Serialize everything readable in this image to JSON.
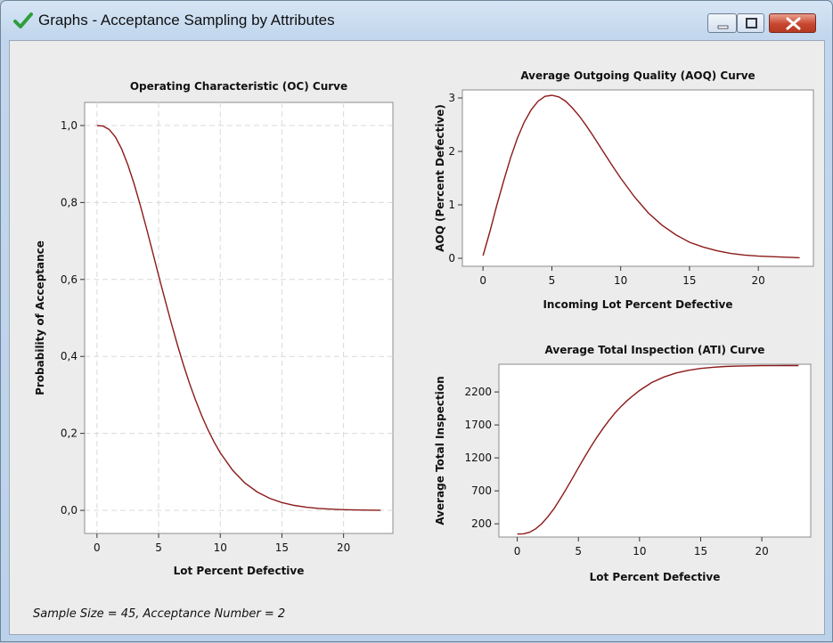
{
  "window": {
    "title": "Graphs - Acceptance Sampling by Attributes",
    "title_icon": "checkmark-icon",
    "buttons": [
      "minimize-icon",
      "maximize-icon",
      "close-icon"
    ]
  },
  "footer": {
    "text": "Sample Size = 45, Acceptance Number = 2"
  },
  "colors": {
    "curve": "#8b1a1a",
    "plot_background": "#ffffff",
    "window_background": "#ececec",
    "gridline": "#d9d9d9"
  },
  "chart_data": [
    {
      "id": "oc",
      "type": "line",
      "title": "Operating Characteristic (OC) Curve",
      "xlabel": "Lot Percent Defective",
      "ylabel": "Probability of Acceptance",
      "xlim": [
        -1,
        24
      ],
      "ylim": [
        -0.06,
        1.06
      ],
      "xticks": [
        0,
        5,
        10,
        15,
        20
      ],
      "yticks": [
        0.0,
        0.2,
        0.4,
        0.6,
        0.8,
        1.0
      ],
      "ytick_labels": [
        "0,0",
        "0,2",
        "0,4",
        "0,6",
        "0,8",
        "1,0"
      ],
      "grid": true,
      "series": [
        {
          "x": [
            0,
            0.5,
            1,
            1.5,
            2,
            2.5,
            3,
            3.5,
            4,
            4.5,
            5,
            5.5,
            6,
            6.5,
            7,
            7.5,
            8,
            8.5,
            9,
            9.5,
            10,
            11,
            12,
            13,
            14,
            15,
            16,
            17,
            18,
            19,
            20,
            21,
            22,
            23
          ],
          "y": [
            1.0,
            0.9985,
            0.9894,
            0.9699,
            0.9393,
            0.8985,
            0.8495,
            0.7942,
            0.7348,
            0.673,
            0.6107,
            0.5492,
            0.4895,
            0.4328,
            0.3797,
            0.3306,
            0.2859,
            0.2455,
            0.2095,
            0.1776,
            0.1497,
            0.1043,
            0.0712,
            0.0476,
            0.0313,
            0.0203,
            0.0129,
            0.0081,
            0.005,
            0.0031,
            0.0019,
            0.0011,
            0.0007,
            0.0004
          ]
        }
      ]
    },
    {
      "id": "aoq",
      "type": "line",
      "title": "Average Outgoing Quality (AOQ) Curve",
      "xlabel": "Incoming Lot Percent Defective",
      "ylabel": "AOQ (Percent Defective)",
      "xlim": [
        -1.5,
        24
      ],
      "ylim": [
        -0.15,
        3.15
      ],
      "xticks": [
        0,
        5,
        10,
        15,
        20
      ],
      "yticks": [
        0,
        1,
        2,
        3
      ],
      "ytick_labels": [
        "0",
        "1",
        "2",
        "3"
      ],
      "grid": false,
      "series": [
        {
          "x": [
            0,
            0.5,
            1,
            1.5,
            2,
            2.5,
            3,
            3.5,
            4,
            4.5,
            5,
            5.5,
            6,
            6.5,
            7,
            7.5,
            8,
            8.5,
            9,
            9.5,
            10,
            11,
            12,
            13,
            14,
            15,
            16,
            17,
            18,
            19,
            20,
            21,
            22,
            23
          ],
          "y": [
            0.05,
            0.5,
            0.99,
            1.45,
            1.88,
            2.25,
            2.55,
            2.78,
            2.94,
            3.03,
            3.05,
            3.02,
            2.94,
            2.81,
            2.66,
            2.48,
            2.29,
            2.09,
            1.89,
            1.69,
            1.5,
            1.15,
            0.85,
            0.62,
            0.44,
            0.3,
            0.21,
            0.14,
            0.09,
            0.06,
            0.04,
            0.03,
            0.02,
            0.01
          ]
        }
      ]
    },
    {
      "id": "ati",
      "type": "line",
      "title": "Average Total Inspection (ATI) Curve",
      "xlabel": "Lot Percent Defective",
      "ylabel": "Average Total Inspection",
      "xlim": [
        -1.5,
        24
      ],
      "ylim": [
        0,
        2620
      ],
      "xticks": [
        0,
        5,
        10,
        15,
        20
      ],
      "yticks": [
        200,
        700,
        1200,
        1700,
        2200
      ],
      "ytick_labels": [
        "200",
        "700",
        "1200",
        "1700",
        "2200"
      ],
      "grid": false,
      "series": [
        {
          "x": [
            0,
            0.5,
            1,
            1.5,
            2,
            2.5,
            3,
            3.5,
            4,
            4.5,
            5,
            5.5,
            6,
            6.5,
            7,
            7.5,
            8,
            8.5,
            9,
            9.5,
            10,
            11,
            12,
            13,
            14,
            15,
            16,
            17,
            18,
            19,
            20,
            21,
            22,
            23
          ],
          "y": [
            45,
            48,
            72,
            124,
            201,
            306,
            430,
            574,
            727,
            887,
            1050,
            1210,
            1363,
            1508,
            1643,
            1767,
            1882,
            1982,
            2070,
            2149,
            2221,
            2343,
            2427,
            2487,
            2528,
            2556,
            2574,
            2586,
            2592,
            2596,
            2598,
            2599,
            2600,
            2600
          ]
        }
      ]
    }
  ]
}
